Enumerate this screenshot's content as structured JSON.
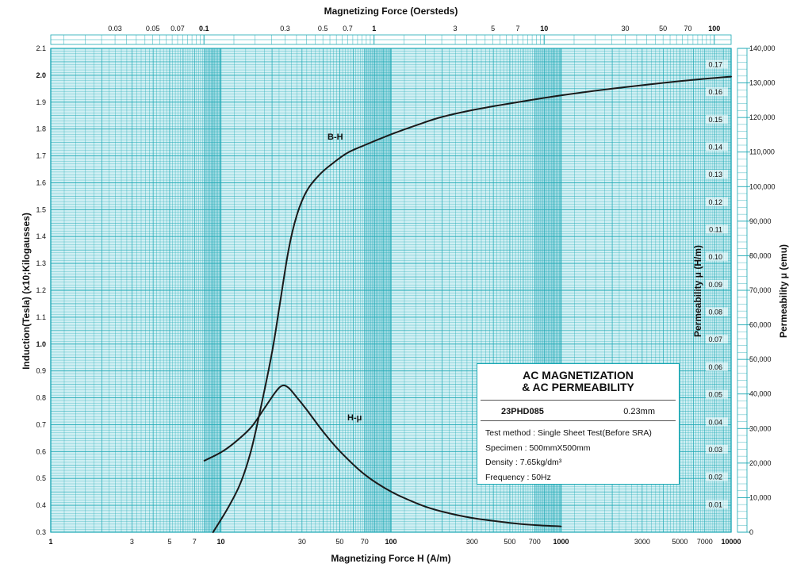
{
  "chart_data": {
    "type": "line",
    "title": "",
    "top_axis": {
      "label": "Magnetizing Force (Oersteds)",
      "scale": "log",
      "range": [
        0.01257,
        125.7
      ],
      "ticks": [
        "0.03",
        "0.05",
        "0.07",
        "0.1",
        "0.3",
        "0.5",
        "0.7",
        "1",
        "3",
        "5",
        "7",
        "10",
        "30",
        "50",
        "70",
        "100"
      ],
      "bold_ticks": [
        "0.1",
        "1",
        "10",
        "100"
      ]
    },
    "bottom_axis": {
      "label": "Magnetizing Force H (A/m)",
      "scale": "log",
      "range": [
        1,
        10000
      ],
      "ticks": [
        "1",
        "3",
        "5",
        "7",
        "10",
        "30",
        "50",
        "70",
        "100",
        "300",
        "500",
        "700",
        "1000",
        "3000",
        "5000",
        "7000",
        "10000"
      ],
      "bold_ticks": [
        "1",
        "10",
        "100",
        "1000",
        "10000"
      ]
    },
    "left_axis": {
      "label": "Induction(Tesla) (x10;Kilogausses)",
      "range": [
        0.3,
        2.1
      ],
      "ticks": [
        "0.3",
        "0.4",
        "0.5",
        "0.6",
        "0.7",
        "0.8",
        "0.9",
        "1.0",
        "1.1",
        "1.2",
        "1.3",
        "1.4",
        "1.5",
        "1.6",
        "1.7",
        "1.8",
        "1.9",
        "2.0",
        "2.1"
      ],
      "bold_ticks": [
        "1.0",
        "2.0"
      ]
    },
    "right_axis_inner": {
      "label": "Permeability μ (H/m)",
      "range": [
        0,
        0.1759
      ],
      "ticks": [
        "0.01",
        "0.02",
        "0.03",
        "0.04",
        "0.05",
        "0.06",
        "0.07",
        "0.08",
        "0.09",
        "0.10",
        "0.11",
        "0.12",
        "0.13",
        "0.14",
        "0.15",
        "0.16",
        "0.17"
      ]
    },
    "right_axis_outer": {
      "label": "Permeability μ (emu)",
      "range": [
        0,
        140000
      ],
      "ticks": [
        "0",
        "10,000",
        "20,000",
        "30,000",
        "40,000",
        "50,000",
        "60,000",
        "70,000",
        "80,000",
        "90,000",
        "100,000",
        "110,000",
        "120,000",
        "130,000",
        "140,000"
      ]
    },
    "series": [
      {
        "name": "B-H",
        "axis": "left",
        "x": [
          9,
          11,
          13,
          15,
          17,
          20,
          22,
          25,
          28,
          32,
          38,
          45,
          55,
          70,
          100,
          150,
          200,
          300,
          500,
          1000,
          2000,
          5000,
          10000
        ],
        "y": [
          0.3,
          0.39,
          0.48,
          0.6,
          0.75,
          0.97,
          1.13,
          1.35,
          1.48,
          1.57,
          1.63,
          1.67,
          1.71,
          1.74,
          1.78,
          1.82,
          1.845,
          1.87,
          1.895,
          1.925,
          1.95,
          1.978,
          1.995
        ]
      },
      {
        "name": "H-μ",
        "axis": "right_inner",
        "x": [
          8,
          10,
          12,
          15,
          18,
          21,
          23,
          25,
          28,
          32,
          40,
          50,
          70,
          100,
          150,
          200,
          300,
          500,
          700,
          1000
        ],
        "y": [
          0.026,
          0.029,
          0.0325,
          0.038,
          0.045,
          0.051,
          0.0533,
          0.0525,
          0.049,
          0.0445,
          0.0365,
          0.0295,
          0.021,
          0.0148,
          0.0099,
          0.0075,
          0.0052,
          0.0034,
          0.0026,
          0.0021
        ]
      }
    ],
    "grid": true,
    "grid_color": "#1aa7b3",
    "plot_background": "#d0eff3",
    "plot_background_shaded": "#a6dde5"
  },
  "info_box": {
    "title_line1": "AC MAGNETIZATION",
    "title_line2": "& AC PERMEABILITY",
    "specimen_code": "23PHD085",
    "thickness": "0.23mm",
    "test_method": "Test method : Single Sheet Test(Before SRA)",
    "specimen": "Specimen : 500mmX500mm",
    "density": "Density : 7.65kg/dm³",
    "frequency": "Frequency : 50Hz"
  }
}
